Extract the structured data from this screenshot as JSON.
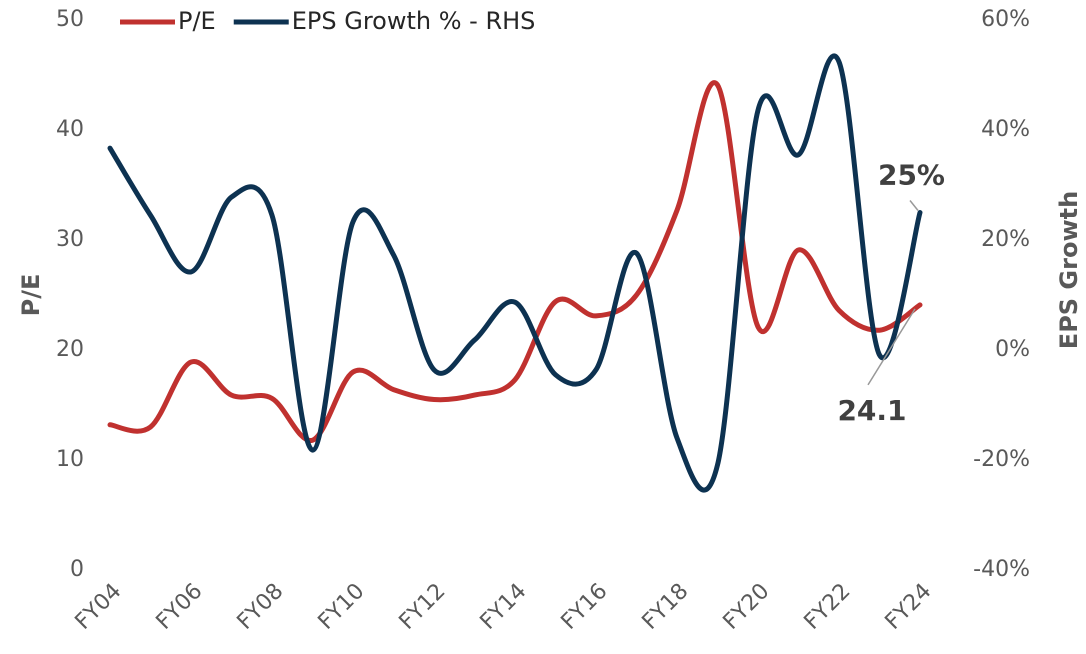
{
  "chart_data": {
    "type": "line",
    "categories": [
      "FY04",
      null,
      "FY06",
      null,
      "FY08",
      null,
      "FY10",
      null,
      "FY12",
      null,
      "FY14",
      null,
      "FY16",
      null,
      "FY18",
      null,
      "FY20",
      null,
      "FY22",
      null,
      "FY24"
    ],
    "series": [
      {
        "name": "P/E",
        "color": "#c0312f",
        "values": [
          13.2,
          13.0,
          18.9,
          15.9,
          15.6,
          11.8,
          18.0,
          16.4,
          15.5,
          15.9,
          17.3,
          24.4,
          23.1,
          25.0,
          32.7,
          44.1,
          22.1,
          29.1,
          23.6,
          21.8,
          24.1
        ],
        "value_labels": [
          null,
          null,
          null,
          null,
          null,
          null,
          null,
          null,
          null,
          null,
          null,
          null,
          null,
          null,
          null,
          null,
          null,
          null,
          null,
          null,
          "24.1"
        ]
      },
      {
        "name": "EPS Growth % - RHS",
        "color": "#0d3251",
        "axis": "y2",
        "values": [
          36.7,
          24.5,
          14.2,
          27.8,
          24.5,
          -18.2,
          23.3,
          17.3,
          -3.6,
          1.8,
          8.7,
          -4.5,
          -3.6,
          17.6,
          -16.0,
          -20.9,
          43.6,
          35.5,
          52.4,
          -0.9,
          25
        ],
        "value_labels": [
          null,
          null,
          null,
          null,
          null,
          null,
          null,
          null,
          null,
          null,
          null,
          null,
          null,
          null,
          null,
          null,
          null,
          null,
          null,
          null,
          "25%"
        ]
      }
    ],
    "y_label": "P/E",
    "y2_label": "EPS Growth",
    "ylim": [
      0,
      50
    ],
    "yticks": [
      0,
      10,
      20,
      30,
      40,
      50
    ],
    "y2lim": [
      -40,
      60
    ],
    "y2ticks": [
      {
        "value": -40,
        "label": "-40%"
      },
      {
        "value": -20,
        "label": "-20%"
      },
      {
        "value": 0,
        "label": "0%"
      },
      {
        "value": 20,
        "label": "20%"
      },
      {
        "value": 40,
        "label": "40%"
      },
      {
        "value": 60,
        "label": "60%"
      }
    ],
    "legend": "top",
    "grid": false
  }
}
